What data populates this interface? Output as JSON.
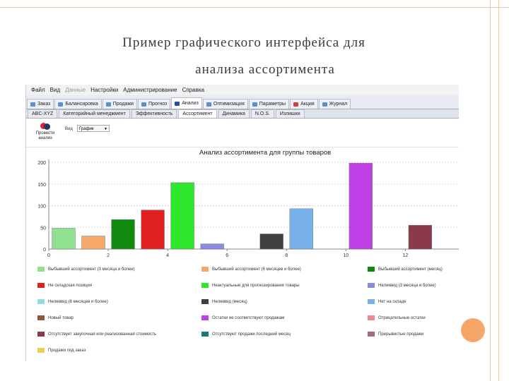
{
  "slide": {
    "title_line1": "Пример графического интерфейса для",
    "title_line2": "анализа ассортимента"
  },
  "menu": [
    "Файл",
    "Вид",
    "Данные",
    "Настройки",
    "Администрирование",
    "Справка"
  ],
  "tabs": [
    {
      "label": "Заказ",
      "color": "#5b8fd0"
    },
    {
      "label": "Балансировка",
      "color": "#5b8fd0"
    },
    {
      "label": "Продажи",
      "color": "#5b8fd0"
    },
    {
      "label": "Прогноз",
      "color": "#5b8fd0"
    },
    {
      "label": "Анализ",
      "color": "#2a4f9a"
    },
    {
      "label": "Оптимизация",
      "color": "#5b8fd0"
    },
    {
      "label": "Параметры",
      "color": "#5b8fd0"
    },
    {
      "label": "Акции",
      "color": "#d04040"
    },
    {
      "label": "Журнал",
      "color": "#5b8fd0"
    }
  ],
  "subtabs": [
    "ABC-XYZ",
    "Категорийный менеджмент",
    "Эффективность",
    "Ассортимент",
    "Динамика",
    "N.O.S.",
    "Излишки"
  ],
  "toolbar": {
    "run_label": "Провести анализ",
    "view_label": "Вид",
    "view_value": "График"
  },
  "chart_data": {
    "type": "bar",
    "title": "Анализ ассортимента для группы товаров",
    "xticks": [
      0,
      2,
      4,
      6,
      8,
      10,
      12
    ],
    "yticks": [
      0,
      50,
      100,
      150,
      200
    ],
    "xlim": [
      0,
      13.8
    ],
    "ylim": [
      0,
      200
    ],
    "bars": [
      {
        "x": 0.5,
        "value": 48,
        "color": "#8fe08f"
      },
      {
        "x": 1.5,
        "value": 30,
        "color": "#f5a86a"
      },
      {
        "x": 2.5,
        "value": 68,
        "color": "#0f8a0f"
      },
      {
        "x": 3.5,
        "value": 90,
        "color": "#e02020"
      },
      {
        "x": 4.5,
        "value": 153,
        "color": "#2ee82e"
      },
      {
        "x": 5.5,
        "value": 12,
        "color": "#8a8ae0"
      },
      {
        "x": 6.5,
        "value": 0,
        "color": "#8fdfe0"
      },
      {
        "x": 7.5,
        "value": 35,
        "color": "#404040"
      },
      {
        "x": 8.5,
        "value": 93,
        "color": "#78b0ea"
      },
      {
        "x": 9.5,
        "value": 0,
        "color": "#8a5a3a"
      },
      {
        "x": 10.5,
        "value": 198,
        "color": "#c040e8"
      },
      {
        "x": 11.5,
        "value": 0,
        "color": "#f08888"
      },
      {
        "x": 12.5,
        "value": 55,
        "color": "#8a3a48"
      }
    ],
    "legend": [
      {
        "label": "Выбывший ассортимент (3 месяца и более)",
        "color": "#8fe08f"
      },
      {
        "label": "Выбывший ассортимент (6 месяцев и более)",
        "color": "#f5a86a"
      },
      {
        "label": "Выбывший ассортимент (месяц)",
        "color": "#0f8a0f"
      },
      {
        "label": "Не складская позиция",
        "color": "#e02020"
      },
      {
        "label": "Неактуальные для прогнозирования товары",
        "color": "#2ee82e"
      },
      {
        "label": "Неликвид (3 месяца и более)",
        "color": "#8a8ae0"
      },
      {
        "label": "Неликвид (6 месяцев и более)",
        "color": "#8fdfe0"
      },
      {
        "label": "Неликвид (месяц)",
        "color": "#404040"
      },
      {
        "label": "Нет на складе",
        "color": "#78b0ea"
      },
      {
        "label": "Новый товар",
        "color": "#8a5a3a"
      },
      {
        "label": "Остатки не соответствуют продажам",
        "color": "#c040e8"
      },
      {
        "label": "Отрицательные остатки",
        "color": "#f08888"
      },
      {
        "label": "Отсутствует закупочная или реализованная стоимость",
        "color": "#8a3a48"
      },
      {
        "label": "Отсутствуют продажи последний месяц",
        "color": "#1a7a7a"
      },
      {
        "label": "Прерывистые продажи",
        "color": "#a86a78"
      },
      {
        "label": "Продажи под заказ",
        "color": "#e8d050"
      }
    ]
  }
}
